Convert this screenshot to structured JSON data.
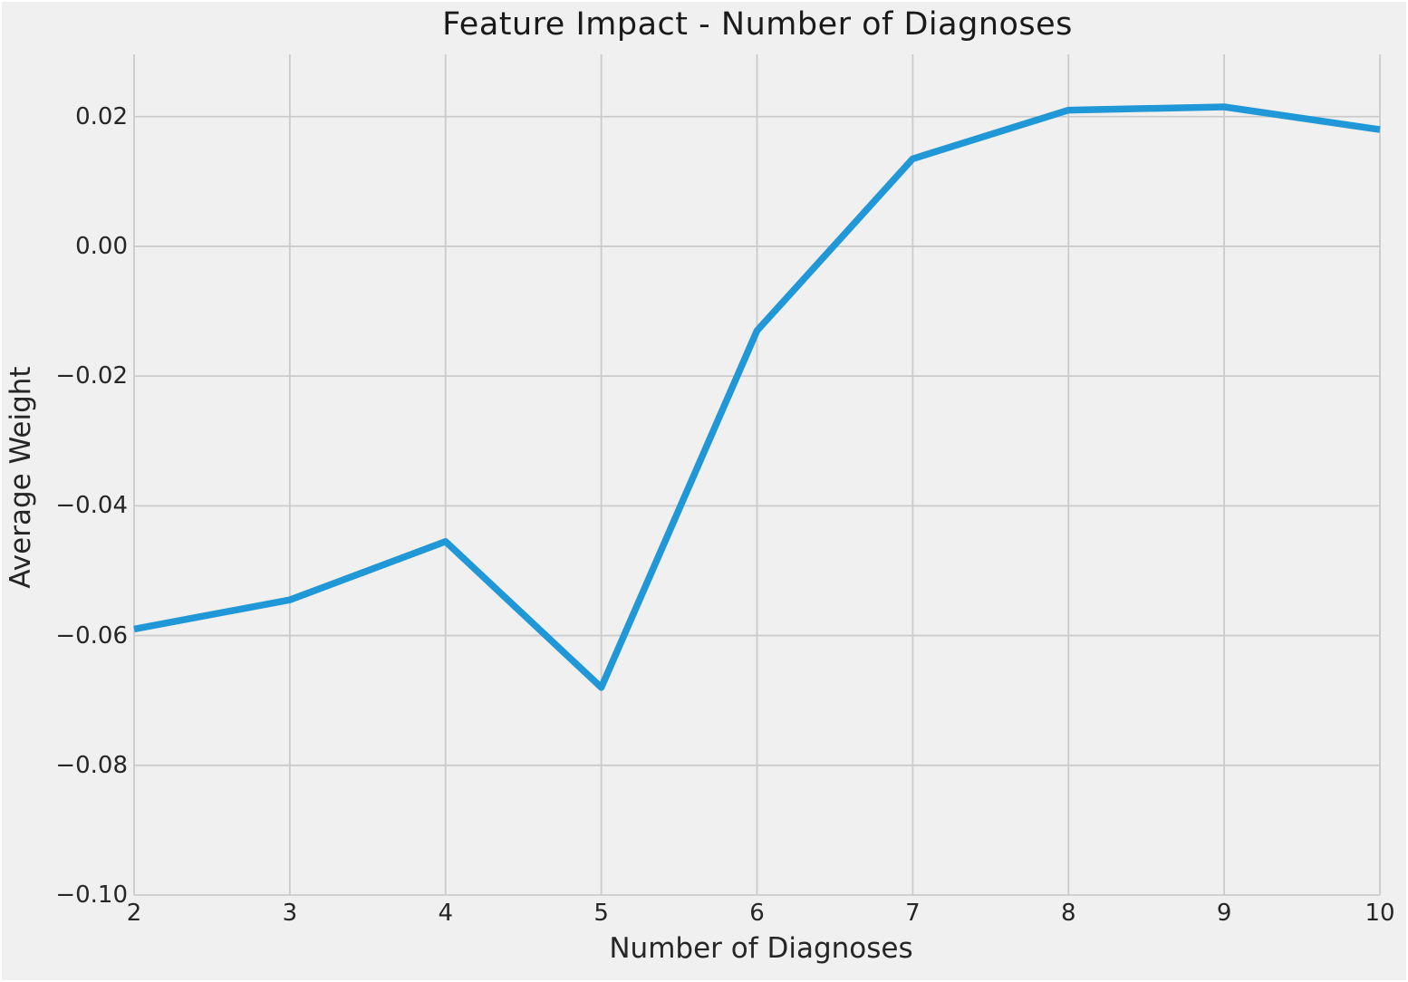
{
  "chart_data": {
    "type": "line",
    "title": "Feature Impact - Number of Diagnoses",
    "xlabel": "Number of Diagnoses",
    "ylabel": "Average Weight",
    "x": [
      2,
      3,
      4,
      5,
      6,
      7,
      8,
      9,
      10
    ],
    "y": [
      -0.059,
      -0.0545,
      -0.0455,
      -0.068,
      -0.013,
      0.0135,
      0.021,
      0.0215,
      0.018
    ],
    "series_name": "Average Weight",
    "xlim": [
      2,
      10
    ],
    "ylim": [
      -0.1,
      0.0296
    ],
    "x_ticks": [
      2,
      3,
      4,
      5,
      6,
      7,
      8,
      9,
      10
    ],
    "x_tick_labels": [
      "2",
      "3",
      "4",
      "5",
      "6",
      "7",
      "8",
      "9",
      "10"
    ],
    "y_ticks": [
      0.02,
      0.0,
      -0.02,
      -0.04,
      -0.06,
      -0.08,
      -0.1
    ],
    "y_tick_labels": [
      "0.02",
      "0.00",
      "−0.02",
      "−0.04",
      "−0.06",
      "−0.08",
      "−0.10"
    ],
    "grid": true,
    "legend_position": "none",
    "line_color": "#2097d6",
    "grid_color": "#cbcbcb",
    "background_color": "#f0f0f0",
    "text_color": "#262626"
  }
}
